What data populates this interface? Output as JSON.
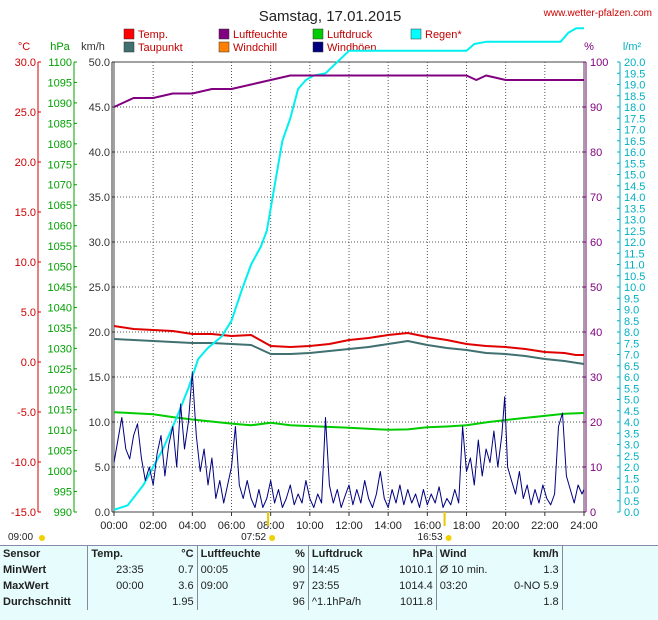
{
  "chart_data": {
    "type": "line",
    "title": "Samstag, 17.01.2015",
    "site": "www.wetter-pfalzen.com",
    "unit_labels": {
      "temp": "°C",
      "pressure": "hPa",
      "wind": "km/h",
      "humidity": "%",
      "rain": "l/m²"
    },
    "axes": {
      "temp": {
        "min": -15,
        "max": 30,
        "step": 5,
        "decimals": 1,
        "color": "#d00000"
      },
      "pressure": {
        "min": 990,
        "max": 1100,
        "step": 5,
        "decimals": 0,
        "color": "#00a000"
      },
      "wind": {
        "min": 0,
        "max": 50,
        "step": 5,
        "decimals": 1,
        "color": "#333333"
      },
      "humidity": {
        "min": 0,
        "max": 100,
        "step": 10,
        "decimals": 0,
        "color": "#800080"
      },
      "rain": {
        "min": 0,
        "max": 20,
        "step": 0.5,
        "decimals": 1,
        "color": "#00b0c0"
      }
    },
    "x_ticks": [
      "00:00",
      "02:00",
      "04:00",
      "06:00",
      "08:00",
      "10:00",
      "12:00",
      "14:00",
      "16:00",
      "18:00",
      "20:00",
      "22:00",
      "24:00"
    ],
    "sunrise": "07:52",
    "sunset": "16:53",
    "sun_markers": [
      {
        "time_h": 7.87,
        "label": "07:52"
      },
      {
        "time_h": 16.88,
        "label": "16:53"
      }
    ],
    "prev_label": "09:00",
    "legend": [
      {
        "label": "Temp.",
        "color": "#ff0000"
      },
      {
        "label": "Luftfeuchte",
        "color": "#800080"
      },
      {
        "label": "Luftdruck",
        "color": "#00cc00"
      },
      {
        "label": "Regen*",
        "color": "#00ffff"
      },
      {
        "label": "Taupunkt",
        "color": "#407070"
      },
      {
        "label": "Windchill",
        "color": "#ff8000"
      },
      {
        "label": "Windböen",
        "color": "#000080"
      }
    ],
    "series": [
      {
        "name": "Temp.",
        "axis": "temp",
        "color": "#e00000",
        "points": [
          [
            0,
            3.6
          ],
          [
            1,
            3.3
          ],
          [
            2,
            3.2
          ],
          [
            3,
            3.1
          ],
          [
            4,
            2.8
          ],
          [
            5,
            2.8
          ],
          [
            6,
            2.6
          ],
          [
            7,
            2.7
          ],
          [
            8,
            1.6
          ],
          [
            9,
            1.5
          ],
          [
            10,
            1.6
          ],
          [
            11,
            1.8
          ],
          [
            12,
            2.2
          ],
          [
            13,
            2.4
          ],
          [
            14,
            2.7
          ],
          [
            15,
            2.9
          ],
          [
            16,
            2.5
          ],
          [
            17,
            2.2
          ],
          [
            18,
            1.8
          ],
          [
            19,
            1.6
          ],
          [
            20,
            1.5
          ],
          [
            21,
            1.3
          ],
          [
            22,
            1.0
          ],
          [
            23,
            0.9
          ],
          [
            23.58,
            0.7
          ],
          [
            24,
            0.7
          ]
        ]
      },
      {
        "name": "Taupunkt",
        "axis": "temp",
        "color": "#407070",
        "points": [
          [
            0,
            2.3
          ],
          [
            1,
            2.2
          ],
          [
            2,
            2.1
          ],
          [
            3,
            2.0
          ],
          [
            4,
            1.9
          ],
          [
            5,
            1.9
          ],
          [
            6,
            1.8
          ],
          [
            7,
            1.7
          ],
          [
            8,
            0.8
          ],
          [
            9,
            0.8
          ],
          [
            10,
            0.9
          ],
          [
            11,
            1.1
          ],
          [
            12,
            1.3
          ],
          [
            13,
            1.5
          ],
          [
            14,
            1.8
          ],
          [
            15,
            2.1
          ],
          [
            16,
            1.7
          ],
          [
            17,
            1.4
          ],
          [
            18,
            1.2
          ],
          [
            19,
            0.9
          ],
          [
            20,
            0.8
          ],
          [
            21,
            0.6
          ],
          [
            22,
            0.3
          ],
          [
            23,
            0.1
          ],
          [
            24,
            -0.2
          ]
        ]
      },
      {
        "name": "Luftdruck",
        "axis": "pressure",
        "color": "#00cc00",
        "points": [
          [
            0,
            1014.4
          ],
          [
            2,
            1013.9
          ],
          [
            3,
            1013.2
          ],
          [
            4,
            1012.6
          ],
          [
            6,
            1011.6
          ],
          [
            7,
            1011.2
          ],
          [
            8,
            1011.8
          ],
          [
            9,
            1011.2
          ],
          [
            10,
            1011.0
          ],
          [
            12,
            1010.6
          ],
          [
            14,
            1010.1
          ],
          [
            15,
            1010.2
          ],
          [
            16,
            1010.7
          ],
          [
            17,
            1010.9
          ],
          [
            18,
            1011.2
          ],
          [
            19,
            1011.9
          ],
          [
            20,
            1012.5
          ],
          [
            21,
            1013.0
          ],
          [
            22,
            1013.5
          ],
          [
            23,
            1014.0
          ],
          [
            24,
            1014.2
          ]
        ]
      },
      {
        "name": "Regen*",
        "axis": "rain",
        "color": "#00f0f0",
        "points": [
          [
            0,
            0.1
          ],
          [
            0.7,
            0.3
          ],
          [
            1.5,
            1.2
          ],
          [
            2.5,
            2.8
          ],
          [
            3.2,
            4.2
          ],
          [
            3.8,
            5.5
          ],
          [
            4.3,
            6.8
          ],
          [
            4.8,
            7.3
          ],
          [
            5.5,
            7.8
          ],
          [
            6,
            8.5
          ],
          [
            6.5,
            9.8
          ],
          [
            7,
            11.0
          ],
          [
            7.5,
            11.8
          ],
          [
            7.8,
            12.5
          ],
          [
            8.2,
            14.5
          ],
          [
            8.6,
            16.5
          ],
          [
            9,
            17.5
          ],
          [
            9.4,
            18.8
          ],
          [
            9.8,
            19.2
          ],
          [
            10.2,
            19.4
          ],
          [
            10.8,
            19.5
          ],
          [
            11.4,
            20.0
          ],
          [
            12,
            20.5
          ],
          [
            13,
            20.5
          ],
          [
            14,
            20.5
          ],
          [
            15,
            20.5
          ],
          [
            16,
            20.5
          ],
          [
            17,
            20.5
          ],
          [
            18,
            20.5
          ],
          [
            18.4,
            20.8
          ],
          [
            19,
            20.9
          ],
          [
            20,
            20.9
          ],
          [
            21,
            20.9
          ],
          [
            22,
            20.9
          ],
          [
            22.8,
            20.9
          ],
          [
            23.2,
            21.3
          ],
          [
            23.6,
            21.5
          ],
          [
            24,
            21.5
          ]
        ]
      },
      {
        "name": "Luftfeuchte",
        "axis": "humidity",
        "color": "#800080",
        "points": [
          [
            0,
            90
          ],
          [
            0.5,
            91
          ],
          [
            1,
            92
          ],
          [
            2,
            92
          ],
          [
            3,
            93
          ],
          [
            4,
            93
          ],
          [
            5,
            94
          ],
          [
            6,
            94
          ],
          [
            7,
            95
          ],
          [
            8,
            96
          ],
          [
            9,
            97
          ],
          [
            10,
            97
          ],
          [
            11,
            97
          ],
          [
            12,
            97
          ],
          [
            13,
            97
          ],
          [
            14,
            97
          ],
          [
            15,
            97
          ],
          [
            16,
            97
          ],
          [
            17,
            97
          ],
          [
            18,
            97
          ],
          [
            18.5,
            96
          ],
          [
            19,
            97
          ],
          [
            20,
            96
          ],
          [
            21,
            96
          ],
          [
            22,
            96
          ],
          [
            23,
            96
          ],
          [
            24,
            96
          ]
        ]
      },
      {
        "name": "Windböen",
        "axis": "wind",
        "color": "#000080",
        "points": [
          [
            0,
            5.5
          ],
          [
            0.2,
            8.0
          ],
          [
            0.4,
            10.5
          ],
          [
            0.6,
            7.0
          ],
          [
            0.8,
            5.9
          ],
          [
            1.0,
            8.5
          ],
          [
            1.2,
            9.8
          ],
          [
            1.4,
            6.0
          ],
          [
            1.6,
            3.5
          ],
          [
            1.8,
            5.0
          ],
          [
            2.0,
            3.0
          ],
          [
            2.2,
            6.5
          ],
          [
            2.4,
            8.5
          ],
          [
            2.6,
            4.0
          ],
          [
            2.8,
            7.5
          ],
          [
            3.0,
            9.5
          ],
          [
            3.2,
            5.0
          ],
          [
            3.4,
            12.0
          ],
          [
            3.6,
            7.0
          ],
          [
            3.8,
            10.0
          ],
          [
            4.0,
            15.5
          ],
          [
            4.2,
            8.5
          ],
          [
            4.4,
            4.5
          ],
          [
            4.6,
            7.0
          ],
          [
            4.8,
            3.0
          ],
          [
            5.0,
            6.0
          ],
          [
            5.2,
            1.5
          ],
          [
            5.4,
            3.5
          ],
          [
            5.6,
            1.0
          ],
          [
            5.8,
            3.0
          ],
          [
            6.0,
            5.0
          ],
          [
            6.2,
            9.5
          ],
          [
            6.4,
            3.0
          ],
          [
            6.6,
            1.5
          ],
          [
            6.8,
            3.5
          ],
          [
            7.0,
            1.5
          ],
          [
            7.2,
            0.5
          ],
          [
            7.4,
            2.5
          ],
          [
            7.6,
            0.5
          ],
          [
            7.8,
            1.5
          ],
          [
            8.0,
            3.5
          ],
          [
            8.2,
            1.0
          ],
          [
            8.4,
            2.5
          ],
          [
            8.6,
            0.5
          ],
          [
            8.8,
            1.5
          ],
          [
            9.0,
            3.0
          ],
          [
            9.2,
            0.8
          ],
          [
            9.4,
            2.0
          ],
          [
            9.6,
            1.0
          ],
          [
            9.8,
            3.5
          ],
          [
            10.0,
            1.5
          ],
          [
            10.2,
            0.5
          ],
          [
            10.4,
            2.0
          ],
          [
            10.6,
            1.0
          ],
          [
            10.8,
            10.5
          ],
          [
            11.0,
            3.0
          ],
          [
            11.2,
            1.0
          ],
          [
            11.4,
            2.5
          ],
          [
            11.6,
            0.5
          ],
          [
            11.8,
            1.8
          ],
          [
            12.0,
            3.0
          ],
          [
            12.2,
            0.8
          ],
          [
            12.4,
            2.5
          ],
          [
            12.6,
            1.0
          ],
          [
            12.8,
            3.5
          ],
          [
            13.0,
            1.5
          ],
          [
            13.2,
            0.5
          ],
          [
            13.4,
            2.0
          ],
          [
            13.6,
            4.5
          ],
          [
            13.8,
            1.5
          ],
          [
            14.0,
            0.5
          ],
          [
            14.2,
            2.5
          ],
          [
            14.4,
            1.0
          ],
          [
            14.6,
            3.0
          ],
          [
            14.8,
            0.8
          ],
          [
            15.0,
            2.5
          ],
          [
            15.2,
            1.0
          ],
          [
            15.4,
            2.0
          ],
          [
            15.6,
            0.5
          ],
          [
            15.8,
            2.5
          ],
          [
            16.0,
            0.8
          ],
          [
            16.2,
            2.0
          ],
          [
            16.4,
            1.0
          ],
          [
            16.6,
            2.8
          ],
          [
            16.8,
            0.5
          ],
          [
            17.0,
            1.5
          ],
          [
            17.2,
            0.8
          ],
          [
            17.4,
            2.5
          ],
          [
            17.6,
            1.0
          ],
          [
            17.8,
            9.5
          ],
          [
            18.0,
            4.5
          ],
          [
            18.2,
            6.0
          ],
          [
            18.4,
            3.0
          ],
          [
            18.6,
            8.0
          ],
          [
            18.8,
            4.0
          ],
          [
            19.0,
            7.0
          ],
          [
            19.2,
            5.5
          ],
          [
            19.4,
            9.0
          ],
          [
            19.6,
            5.0
          ],
          [
            19.8,
            8.5
          ],
          [
            19.95,
            12.8
          ],
          [
            20.1,
            5.0
          ],
          [
            20.3,
            3.5
          ],
          [
            20.5,
            2.0
          ],
          [
            20.7,
            4.5
          ],
          [
            20.9,
            1.5
          ],
          [
            21.1,
            3.0
          ],
          [
            21.3,
            0.8
          ],
          [
            21.5,
            2.5
          ],
          [
            21.7,
            1.0
          ],
          [
            21.9,
            3.0
          ],
          [
            22.1,
            1.5
          ],
          [
            22.3,
            0.8
          ],
          [
            22.5,
            2.0
          ],
          [
            22.7,
            9.5
          ],
          [
            22.9,
            11.0
          ],
          [
            23.1,
            4.0
          ],
          [
            23.3,
            2.5
          ],
          [
            23.5,
            1.0
          ],
          [
            23.7,
            3.0
          ],
          [
            23.9,
            2.0
          ],
          [
            24,
            2.5
          ]
        ]
      }
    ]
  },
  "stats": {
    "headers": [
      "Sensor",
      "Temp.",
      "°C",
      "Luftfeuchte",
      "%",
      "Luftdruck",
      "hPa",
      "Wind",
      "km/h"
    ],
    "rows": [
      {
        "label": "MinWert",
        "temp_time": "23:35",
        "temp": "0.7",
        "hum_time": "00:05",
        "hum": "90",
        "pres_time": "14:45",
        "pres": "1010.1",
        "wind_label": "Ø 10 min.",
        "wind": "1.3"
      },
      {
        "label": "MaxWert",
        "temp_time": "00:00",
        "temp": "3.6",
        "hum_time": "09:00",
        "hum": "97",
        "pres_time": "23:55",
        "pres": "1014.4",
        "wind_label": "03:20",
        "wind": "0-NO 5.9"
      },
      {
        "label": "Durchschnitt",
        "temp_time": "",
        "temp": "1.95",
        "hum_time": "",
        "hum": "96",
        "pres_time": "^1.1hPa/h",
        "pres": "1011.8",
        "wind_label": "",
        "wind": "1.8"
      }
    ]
  }
}
